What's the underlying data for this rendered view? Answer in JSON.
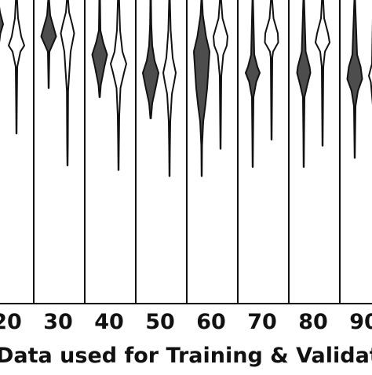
{
  "chart_data": {
    "type": "violin",
    "xlabel": "Data used for Training & Validation",
    "categories": [
      "20",
      "30",
      "40",
      "50",
      "60",
      "70",
      "80",
      "90"
    ],
    "series": [
      {
        "role": "dark",
        "fill": "#4d4d4d"
      },
      {
        "role": "light",
        "fill": "#ffffff"
      }
    ],
    "y_domain": [
      0,
      10
    ],
    "grid": false,
    "legend": "none",
    "colors": {
      "dark_fill": "#4d4d4d",
      "light_fill": "#ffffff",
      "stroke": "#111111",
      "background": "#ffffff"
    },
    "violins": [
      {
        "category": "20",
        "role": "dark",
        "min": 8.25,
        "max": 10,
        "nodes": [
          [
            8.3,
            0.05
          ],
          [
            8.9,
            0.35
          ],
          [
            9.2,
            0.7
          ],
          [
            9.6,
            0.3
          ],
          [
            10,
            0.08
          ]
        ]
      },
      {
        "category": "20",
        "role": "light",
        "min": 5.6,
        "max": 10,
        "nodes": [
          [
            5.6,
            0.02
          ],
          [
            6.6,
            0.05
          ],
          [
            7.8,
            0.1
          ],
          [
            8.3,
            0.5
          ],
          [
            8.5,
            1.0
          ],
          [
            8.8,
            0.6
          ],
          [
            9.4,
            0.2
          ],
          [
            10,
            0.08
          ]
        ]
      },
      {
        "category": "30",
        "role": "dark",
        "min": 7.1,
        "max": 10,
        "nodes": [
          [
            7.1,
            0.02
          ],
          [
            7.6,
            0.05
          ],
          [
            8.3,
            0.1
          ],
          [
            8.8,
            0.95
          ],
          [
            9.5,
            0.2
          ],
          [
            10,
            0.06
          ]
        ]
      },
      {
        "category": "30",
        "role": "light",
        "min": 4.55,
        "max": 10,
        "nodes": [
          [
            4.55,
            0.02
          ],
          [
            5.3,
            0.05
          ],
          [
            7.0,
            0.08
          ],
          [
            8.3,
            0.4
          ],
          [
            8.9,
            0.85
          ],
          [
            9.2,
            0.6
          ],
          [
            9.6,
            0.2
          ],
          [
            10,
            0.08
          ]
        ]
      },
      {
        "category": "40",
        "role": "dark",
        "min": 6.8,
        "max": 10,
        "nodes": [
          [
            6.8,
            0.03
          ],
          [
            7.2,
            0.15
          ],
          [
            7.8,
            0.6
          ],
          [
            8.2,
            0.95
          ],
          [
            8.6,
            0.45
          ],
          [
            9.0,
            0.1
          ],
          [
            10,
            0.05
          ]
        ]
      },
      {
        "category": "40",
        "role": "light",
        "min": 4.4,
        "max": 10,
        "nodes": [
          [
            4.4,
            0.02
          ],
          [
            5.2,
            0.05
          ],
          [
            6.2,
            0.1
          ],
          [
            7.1,
            0.25
          ],
          [
            7.6,
            0.7
          ],
          [
            7.9,
            1.0
          ],
          [
            8.3,
            0.5
          ],
          [
            9.0,
            0.2
          ],
          [
            10,
            0.08
          ]
        ]
      },
      {
        "category": "50",
        "role": "dark",
        "min": 6.1,
        "max": 10,
        "nodes": [
          [
            6.1,
            0.04
          ],
          [
            6.6,
            0.2
          ],
          [
            7.2,
            0.7
          ],
          [
            7.6,
            1.0
          ],
          [
            8.0,
            0.5
          ],
          [
            8.5,
            0.2
          ],
          [
            9.2,
            0.08
          ],
          [
            10,
            0.04
          ]
        ]
      },
      {
        "category": "50",
        "role": "light",
        "min": 4.2,
        "max": 10,
        "nodes": [
          [
            4.2,
            0.02
          ],
          [
            5.1,
            0.05
          ],
          [
            6.0,
            0.1
          ],
          [
            6.9,
            0.3
          ],
          [
            7.3,
            0.6
          ],
          [
            7.6,
            0.8
          ],
          [
            8.1,
            0.4
          ],
          [
            9.0,
            0.15
          ],
          [
            10,
            0.05
          ]
        ]
      },
      {
        "category": "60",
        "role": "dark",
        "min": 4.2,
        "max": 10,
        "nodes": [
          [
            4.2,
            0.02
          ],
          [
            5.2,
            0.05
          ],
          [
            6.0,
            0.2
          ],
          [
            6.5,
            0.45
          ],
          [
            7.1,
            0.7
          ],
          [
            8.3,
            1.0
          ],
          [
            8.8,
            0.55
          ],
          [
            9.5,
            0.15
          ],
          [
            10,
            0.05
          ]
        ]
      },
      {
        "category": "60",
        "role": "light",
        "min": 5.1,
        "max": 10,
        "nodes": [
          [
            5.1,
            0.02
          ],
          [
            6.0,
            0.05
          ],
          [
            7.5,
            0.1
          ],
          [
            8.2,
            0.35
          ],
          [
            8.5,
            0.8
          ],
          [
            8.8,
            0.9
          ],
          [
            9.4,
            0.25
          ],
          [
            10,
            0.08
          ]
        ]
      },
      {
        "category": "70",
        "role": "dark",
        "min": 4.5,
        "max": 10,
        "nodes": [
          [
            4.5,
            0.02
          ],
          [
            5.5,
            0.05
          ],
          [
            6.8,
            0.1
          ],
          [
            7.3,
            0.45
          ],
          [
            7.6,
            0.9
          ],
          [
            7.8,
            0.6
          ],
          [
            8.2,
            0.2
          ],
          [
            10,
            0.04
          ]
        ]
      },
      {
        "category": "70",
        "role": "light",
        "min": 5.4,
        "max": 10,
        "nodes": [
          [
            5.4,
            0.02
          ],
          [
            6.4,
            0.05
          ],
          [
            8.1,
            0.1
          ],
          [
            8.3,
            0.2
          ],
          [
            8.6,
            0.85
          ],
          [
            8.9,
            0.8
          ],
          [
            9.4,
            0.25
          ],
          [
            10,
            0.08
          ]
        ]
      },
      {
        "category": "80",
        "role": "dark",
        "min": 4.5,
        "max": 10,
        "nodes": [
          [
            4.5,
            0.02
          ],
          [
            5.6,
            0.05
          ],
          [
            6.8,
            0.1
          ],
          [
            7.2,
            0.45
          ],
          [
            7.6,
            0.85
          ],
          [
            7.8,
            0.75
          ],
          [
            8.3,
            0.25
          ],
          [
            10,
            0.05
          ]
        ]
      },
      {
        "category": "80",
        "role": "light",
        "min": 5.2,
        "max": 10,
        "nodes": [
          [
            5.2,
            0.02
          ],
          [
            6.2,
            0.05
          ],
          [
            7.8,
            0.1
          ],
          [
            8.3,
            0.3
          ],
          [
            8.6,
            0.9
          ],
          [
            8.9,
            0.7
          ],
          [
            9.4,
            0.2
          ],
          [
            10,
            0.08
          ]
        ]
      },
      {
        "category": "90",
        "role": "dark",
        "min": 4.8,
        "max": 10,
        "nodes": [
          [
            4.8,
            0.02
          ],
          [
            5.5,
            0.05
          ],
          [
            6.5,
            0.1
          ],
          [
            7.0,
            0.4
          ],
          [
            7.4,
            0.95
          ],
          [
            7.8,
            0.75
          ],
          [
            8.2,
            0.3
          ],
          [
            10,
            0.05
          ]
        ]
      },
      {
        "category": "90",
        "role": "light",
        "min": 5.6,
        "max": 10,
        "nodes": [
          [
            5.6,
            0.02
          ],
          [
            6.4,
            0.05
          ],
          [
            7.3,
            0.35
          ],
          [
            7.5,
            0.6
          ],
          [
            7.9,
            0.2
          ],
          [
            10,
            0.06
          ]
        ]
      }
    ]
  }
}
